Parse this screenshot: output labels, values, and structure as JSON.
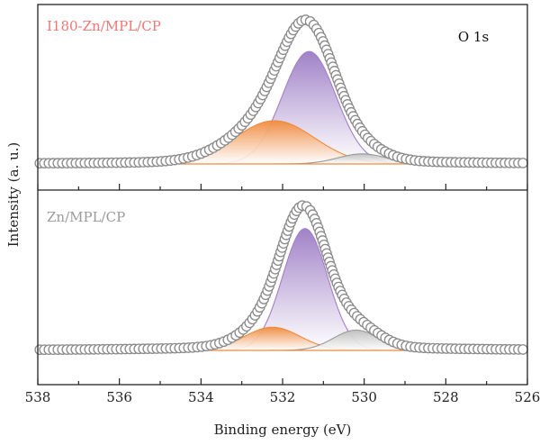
{
  "chart_data": {
    "type": "line",
    "x_axis": {
      "label": "Binding energy (eV)",
      "range": [
        538,
        526
      ],
      "reversed": true,
      "ticks": [
        538,
        536,
        534,
        532,
        530,
        528,
        526
      ]
    },
    "y_axis": {
      "label": "Intensity (a. u.)",
      "ticks_shown": false
    },
    "annotation": "O 1s",
    "panels": [
      {
        "label": "I180-Zn/MPL/CP",
        "label_color": "#f47575",
        "envelope": {
          "style": "open-circles",
          "baseline": 0.08,
          "peak_x": 531.45,
          "peak_height": 1.0
        },
        "components": [
          {
            "center": 531.35,
            "height": 0.78,
            "fwhm": 1.55,
            "fill": "#9b7bc4",
            "stroke": "#a67ec8"
          },
          {
            "center": 532.2,
            "height": 0.3,
            "fwhm": 2.3,
            "fill": "#f08a3c",
            "stroke": "#f08a3c"
          },
          {
            "center": 530.05,
            "height": 0.07,
            "fwhm": 1.4,
            "fill": "#bdbdbd",
            "stroke": "#9a9a9a"
          }
        ]
      },
      {
        "label": "Zn/MPL/CP",
        "label_color": "#9a9a9a",
        "envelope": {
          "style": "open-circles",
          "baseline": 0.03,
          "peak_x": 531.45,
          "peak_height": 1.0
        },
        "components": [
          {
            "center": 531.45,
            "height": 0.84,
            "fwhm": 1.3,
            "fill": "#9b7bc4",
            "stroke": "#a67ec8"
          },
          {
            "center": 532.25,
            "height": 0.16,
            "fwhm": 1.6,
            "fill": "#f08a3c",
            "stroke": "#f08a3c"
          },
          {
            "center": 530.2,
            "height": 0.14,
            "fwhm": 1.3,
            "fill": "#bdbdbd",
            "stroke": "#9a9a9a"
          }
        ]
      }
    ]
  }
}
